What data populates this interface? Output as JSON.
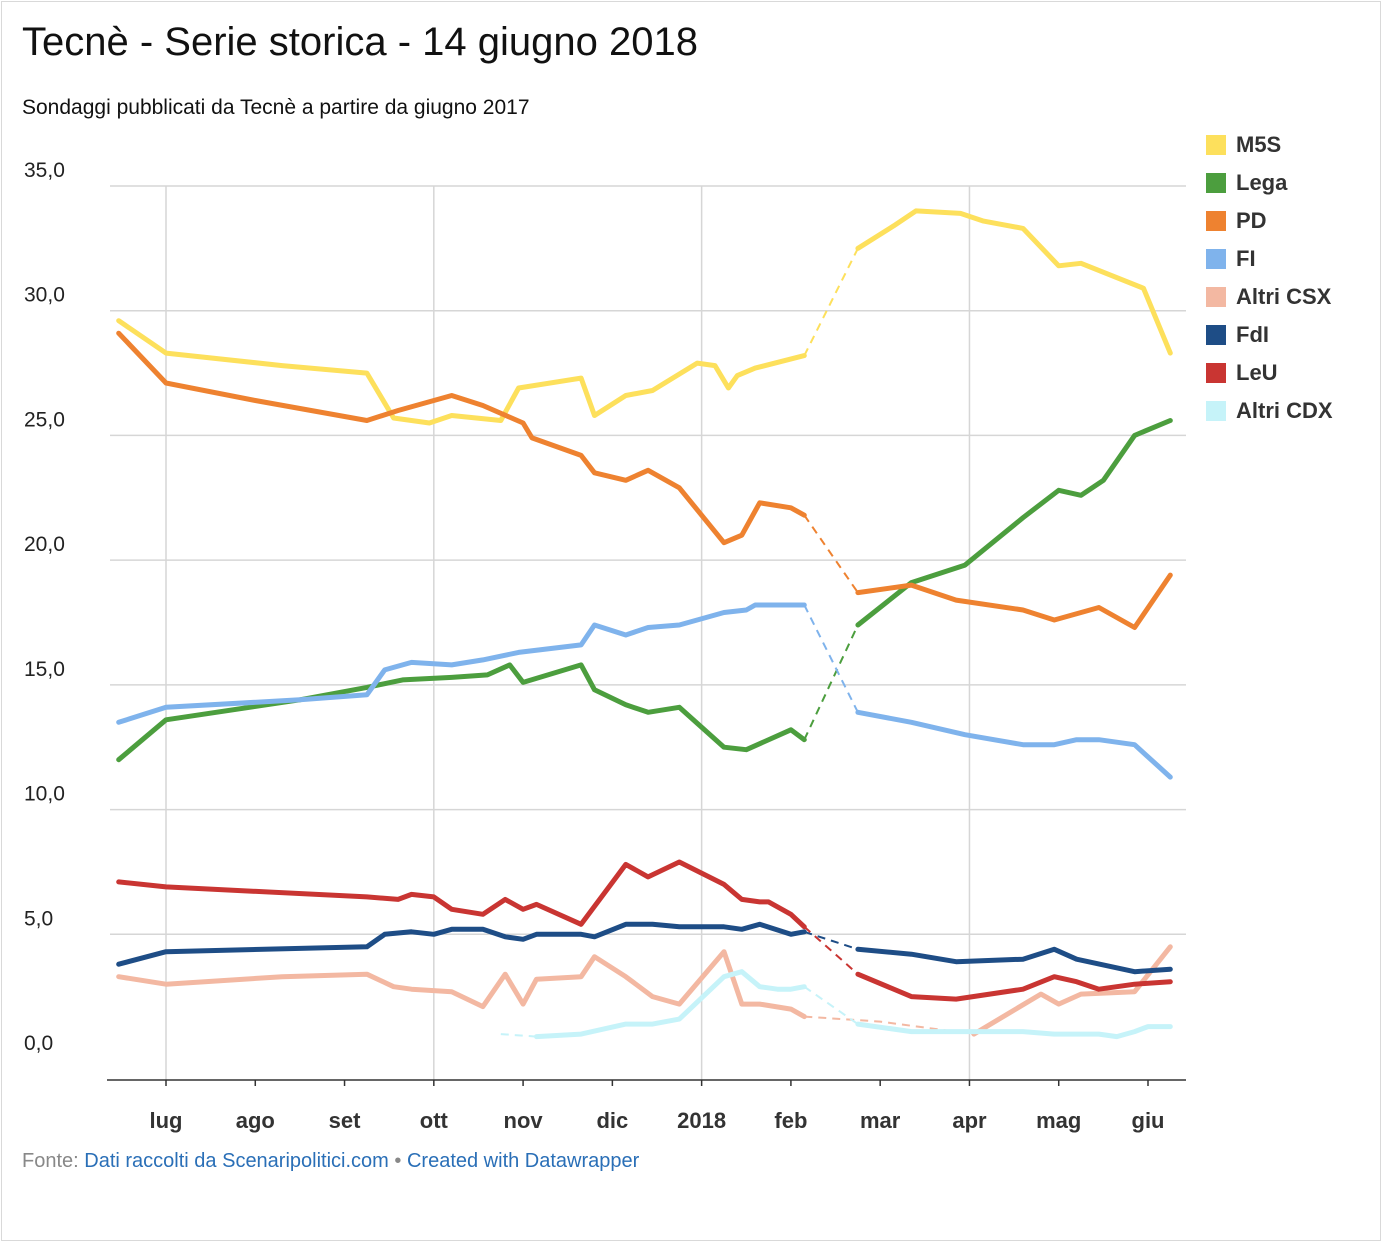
{
  "title": "Tecnè - Serie storica - 14 giugno 2018",
  "subtitle": "Sondaggi pubblicati da Tecnè a partire da giugno 2017",
  "footer": {
    "prefix": "Fonte:",
    "source": "Dati raccolti da Scenaripolitici.com",
    "separator": "•",
    "credit": "Created with Datawrapper"
  },
  "chart_data": {
    "type": "line",
    "x_ticks": [
      {
        "label": "lug",
        "x": 1.0
      },
      {
        "label": "ago",
        "x": 2.0
      },
      {
        "label": "set",
        "x": 3.0
      },
      {
        "label": "ott",
        "x": 4.0
      },
      {
        "label": "nov",
        "x": 5.0
      },
      {
        "label": "dic",
        "x": 6.0
      },
      {
        "label": "2018",
        "x": 7.0
      },
      {
        "label": "feb",
        "x": 8.0
      },
      {
        "label": "mar",
        "x": 9.0
      },
      {
        "label": "apr",
        "x": 10.0
      },
      {
        "label": "mag",
        "x": 11.0
      },
      {
        "label": "giu",
        "x": 12.0
      }
    ],
    "xlim": [
      0.4,
      12.3
    ],
    "ylim": [
      -0.8,
      35.0
    ],
    "y_ticks": [
      {
        "label": "0,0",
        "value": 0
      },
      {
        "label": "5,0",
        "value": 5
      },
      {
        "label": "10,0",
        "value": 10
      },
      {
        "label": "15,0",
        "value": 15
      },
      {
        "label": "20,0",
        "value": 20
      },
      {
        "label": "25,0",
        "value": 25
      },
      {
        "label": "30,0",
        "value": 30
      },
      {
        "label": "35,0",
        "value": 35
      }
    ],
    "grid": true,
    "legend_position": "right",
    "series": [
      {
        "name": "M5S",
        "color": "#fde05c",
        "points": [
          [
            0.47,
            29.6
          ],
          [
            1.0,
            28.3
          ],
          [
            2.3,
            27.8
          ],
          [
            3.25,
            27.5
          ],
          [
            3.55,
            25.7
          ],
          [
            3.95,
            25.5
          ],
          [
            4.2,
            25.8
          ],
          [
            4.75,
            25.6
          ],
          [
            4.95,
            26.9
          ],
          [
            5.65,
            27.3
          ],
          [
            5.8,
            25.8
          ],
          [
            6.15,
            26.6
          ],
          [
            6.45,
            26.8
          ],
          [
            6.95,
            27.9
          ],
          [
            7.15,
            27.8
          ],
          [
            7.3,
            26.9
          ],
          [
            7.4,
            27.4
          ],
          [
            7.6,
            27.7
          ],
          [
            8.15,
            28.2
          ]
        ],
        "bridge": [
          [
            8.15,
            28.2
          ],
          [
            8.75,
            32.5
          ]
        ],
        "points2": [
          [
            8.75,
            32.5
          ],
          [
            9.15,
            33.4
          ],
          [
            9.4,
            34.0
          ],
          [
            9.9,
            33.9
          ],
          [
            10.15,
            33.6
          ],
          [
            10.6,
            33.3
          ],
          [
            11.0,
            31.8
          ],
          [
            11.25,
            31.9
          ],
          [
            11.95,
            30.9
          ],
          [
            12.25,
            28.3
          ]
        ]
      },
      {
        "name": "Lega",
        "color": "#4c9e3e",
        "points": [
          [
            0.47,
            12.0
          ],
          [
            1.0,
            13.6
          ],
          [
            2.5,
            14.4
          ],
          [
            3.25,
            14.9
          ],
          [
            3.65,
            15.2
          ],
          [
            4.2,
            15.3
          ],
          [
            4.6,
            15.4
          ],
          [
            4.85,
            15.8
          ],
          [
            5.0,
            15.1
          ],
          [
            5.65,
            15.8
          ],
          [
            5.8,
            14.8
          ],
          [
            6.15,
            14.2
          ],
          [
            6.4,
            13.9
          ],
          [
            6.75,
            14.1
          ],
          [
            7.25,
            12.5
          ],
          [
            7.5,
            12.4
          ],
          [
            8.0,
            13.2
          ],
          [
            8.15,
            12.8
          ]
        ],
        "bridge": [
          [
            8.15,
            12.8
          ],
          [
            8.75,
            17.4
          ]
        ],
        "points2": [
          [
            8.75,
            17.4
          ],
          [
            9.35,
            19.1
          ],
          [
            9.95,
            19.8
          ],
          [
            10.6,
            21.7
          ],
          [
            11.0,
            22.8
          ],
          [
            11.25,
            22.6
          ],
          [
            11.5,
            23.2
          ],
          [
            11.85,
            25.0
          ],
          [
            12.25,
            25.6
          ]
        ]
      },
      {
        "name": "PD",
        "color": "#ee8230",
        "points": [
          [
            0.47,
            29.1
          ],
          [
            1.0,
            27.1
          ],
          [
            2.0,
            26.4
          ],
          [
            3.25,
            25.6
          ],
          [
            3.6,
            26.0
          ],
          [
            4.2,
            26.6
          ],
          [
            4.55,
            26.2
          ],
          [
            5.0,
            25.5
          ],
          [
            5.1,
            24.9
          ],
          [
            5.65,
            24.2
          ],
          [
            5.8,
            23.5
          ],
          [
            6.15,
            23.2
          ],
          [
            6.4,
            23.6
          ],
          [
            6.75,
            22.9
          ],
          [
            7.25,
            20.7
          ],
          [
            7.45,
            21.0
          ],
          [
            7.65,
            22.3
          ],
          [
            8.0,
            22.1
          ],
          [
            8.15,
            21.8
          ]
        ],
        "bridge": [
          [
            8.15,
            21.8
          ],
          [
            8.75,
            18.7
          ]
        ],
        "points2": [
          [
            8.75,
            18.7
          ],
          [
            9.35,
            19.0
          ],
          [
            9.85,
            18.4
          ],
          [
            10.6,
            18.0
          ],
          [
            10.95,
            17.6
          ],
          [
            11.45,
            18.1
          ],
          [
            11.85,
            17.3
          ],
          [
            12.25,
            19.4
          ]
        ]
      },
      {
        "name": "FI",
        "color": "#7fb3ec",
        "points": [
          [
            0.47,
            13.5
          ],
          [
            1.0,
            14.1
          ],
          [
            2.5,
            14.4
          ],
          [
            3.25,
            14.6
          ],
          [
            3.45,
            15.6
          ],
          [
            3.75,
            15.9
          ],
          [
            4.2,
            15.8
          ],
          [
            4.55,
            16.0
          ],
          [
            4.95,
            16.3
          ],
          [
            5.65,
            16.6
          ],
          [
            5.8,
            17.4
          ],
          [
            6.15,
            17.0
          ],
          [
            6.4,
            17.3
          ],
          [
            6.75,
            17.4
          ],
          [
            7.25,
            17.9
          ],
          [
            7.5,
            18.0
          ],
          [
            7.6,
            18.2
          ],
          [
            8.15,
            18.2
          ]
        ],
        "bridge": [
          [
            8.15,
            18.2
          ],
          [
            8.75,
            13.9
          ]
        ],
        "points2": [
          [
            8.75,
            13.9
          ],
          [
            9.35,
            13.5
          ],
          [
            9.95,
            13.0
          ],
          [
            10.6,
            12.6
          ],
          [
            10.95,
            12.6
          ],
          [
            11.2,
            12.8
          ],
          [
            11.45,
            12.8
          ],
          [
            11.85,
            12.6
          ],
          [
            12.25,
            11.3
          ]
        ]
      },
      {
        "name": "Altri CSX",
        "color": "#f3b8a2",
        "points": [
          [
            0.47,
            3.3
          ],
          [
            1.0,
            3.0
          ],
          [
            2.3,
            3.3
          ],
          [
            3.25,
            3.4
          ],
          [
            3.55,
            2.9
          ],
          [
            3.75,
            2.8
          ],
          [
            4.2,
            2.7
          ],
          [
            4.55,
            2.1
          ],
          [
            4.8,
            3.4
          ],
          [
            5.0,
            2.2
          ],
          [
            5.15,
            3.2
          ],
          [
            5.65,
            3.3
          ],
          [
            5.8,
            4.1
          ],
          [
            6.15,
            3.3
          ],
          [
            6.45,
            2.5
          ],
          [
            6.75,
            2.2
          ],
          [
            7.25,
            4.3
          ],
          [
            7.45,
            2.2
          ],
          [
            7.65,
            2.2
          ],
          [
            8.0,
            2.0
          ],
          [
            8.15,
            1.7
          ]
        ],
        "bridge": [
          [
            8.15,
            1.7
          ],
          [
            9.0,
            1.5
          ],
          [
            10.05,
            1.0
          ]
        ],
        "points2": [
          [
            10.05,
            1.0
          ],
          [
            10.8,
            2.6
          ],
          [
            11.0,
            2.2
          ],
          [
            11.25,
            2.6
          ],
          [
            11.85,
            2.7
          ],
          [
            12.25,
            4.5
          ]
        ]
      },
      {
        "name": "FdI",
        "color": "#1e4d86",
        "points": [
          [
            0.47,
            3.8
          ],
          [
            1.0,
            4.3
          ],
          [
            3.25,
            4.5
          ],
          [
            3.45,
            5.0
          ],
          [
            3.75,
            5.1
          ],
          [
            4.0,
            5.0
          ],
          [
            4.2,
            5.2
          ],
          [
            4.55,
            5.2
          ],
          [
            4.8,
            4.9
          ],
          [
            5.0,
            4.8
          ],
          [
            5.15,
            5.0
          ],
          [
            5.65,
            5.0
          ],
          [
            5.8,
            4.9
          ],
          [
            6.15,
            5.4
          ],
          [
            6.45,
            5.4
          ],
          [
            6.75,
            5.3
          ],
          [
            7.25,
            5.3
          ],
          [
            7.45,
            5.2
          ],
          [
            7.65,
            5.4
          ],
          [
            8.0,
            5.0
          ],
          [
            8.15,
            5.1
          ]
        ],
        "bridge": [
          [
            8.15,
            5.1
          ],
          [
            8.75,
            4.4
          ]
        ],
        "points2": [
          [
            8.75,
            4.4
          ],
          [
            9.35,
            4.2
          ],
          [
            9.85,
            3.9
          ],
          [
            10.6,
            4.0
          ],
          [
            10.95,
            4.4
          ],
          [
            11.2,
            4.0
          ],
          [
            11.85,
            3.5
          ],
          [
            12.25,
            3.6
          ]
        ]
      },
      {
        "name": "LeU",
        "color": "#c93532",
        "points": [
          [
            0.47,
            7.1
          ],
          [
            1.0,
            6.9
          ],
          [
            3.25,
            6.5
          ],
          [
            3.6,
            6.4
          ],
          [
            3.75,
            6.6
          ],
          [
            4.0,
            6.5
          ],
          [
            4.2,
            6.0
          ],
          [
            4.55,
            5.8
          ],
          [
            4.8,
            6.4
          ],
          [
            5.0,
            6.0
          ],
          [
            5.15,
            6.2
          ],
          [
            5.65,
            5.4
          ],
          [
            6.15,
            7.8
          ],
          [
            6.4,
            7.3
          ],
          [
            6.75,
            7.9
          ],
          [
            7.25,
            7.0
          ],
          [
            7.45,
            6.4
          ],
          [
            7.65,
            6.3
          ],
          [
            7.75,
            6.3
          ],
          [
            8.0,
            5.8
          ],
          [
            8.15,
            5.3
          ]
        ],
        "bridge": [
          [
            8.15,
            5.3
          ],
          [
            8.75,
            3.4
          ]
        ],
        "points2": [
          [
            8.75,
            3.4
          ],
          [
            9.35,
            2.5
          ],
          [
            9.85,
            2.4
          ],
          [
            10.6,
            2.8
          ],
          [
            10.95,
            3.3
          ],
          [
            11.2,
            3.1
          ],
          [
            11.45,
            2.8
          ],
          [
            11.85,
            3.0
          ],
          [
            12.25,
            3.1
          ]
        ]
      },
      {
        "name": "Altri CDX",
        "color": "#c6f3f9",
        "bridge_pre": [
          [
            4.75,
            1.0
          ],
          [
            5.15,
            0.9
          ]
        ],
        "points": [
          [
            5.15,
            0.9
          ],
          [
            5.65,
            1.0
          ],
          [
            6.15,
            1.4
          ],
          [
            6.45,
            1.4
          ],
          [
            6.75,
            1.6
          ],
          [
            7.25,
            3.3
          ],
          [
            7.45,
            3.5
          ],
          [
            7.65,
            2.9
          ],
          [
            7.85,
            2.8
          ],
          [
            8.0,
            2.8
          ],
          [
            8.15,
            2.9
          ]
        ],
        "bridge": [
          [
            8.15,
            2.9
          ],
          [
            8.75,
            1.4
          ]
        ],
        "points2": [
          [
            8.75,
            1.4
          ],
          [
            9.35,
            1.1
          ],
          [
            10.05,
            1.1
          ],
          [
            10.6,
            1.1
          ],
          [
            10.95,
            1.0
          ],
          [
            11.45,
            1.0
          ],
          [
            11.65,
            0.9
          ],
          [
            11.85,
            1.1
          ],
          [
            12.0,
            1.3
          ],
          [
            12.25,
            1.3
          ]
        ]
      }
    ]
  }
}
